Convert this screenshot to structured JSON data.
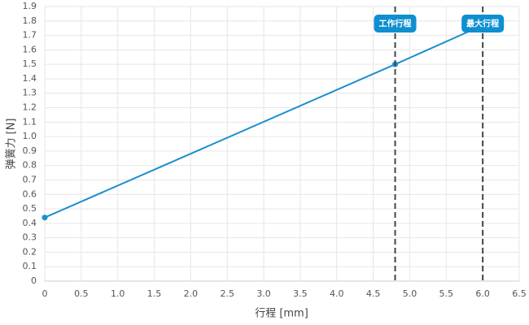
{
  "chart_data": {
    "type": "line",
    "x_label": "行程 [mm]",
    "y_label": "弹簧力 [N]",
    "x": [
      0,
      4.8,
      6
    ],
    "series": [
      {
        "name": "弹簧力",
        "color": "#1a8fcf",
        "values": [
          0.44,
          1.5,
          1.77
        ]
      }
    ],
    "xlim": [
      0,
      6.5
    ],
    "xticks": [
      0,
      0.5,
      {
        "value": 1,
        "label": "1.0"
      },
      1.5,
      {
        "value": 2,
        "label": "2.0"
      },
      2.5,
      {
        "value": 3,
        "label": "3.0"
      },
      3.5,
      {
        "value": 4,
        "label": "4.0"
      },
      4.5,
      {
        "value": 5,
        "label": "5.0"
      },
      5.5,
      {
        "value": 6,
        "label": "6.0"
      },
      6.5
    ],
    "ylim": [
      0,
      1.9
    ],
    "yticks": [
      0,
      0.1,
      0.2,
      0.3,
      0.4,
      0.5,
      0.6,
      0.7,
      0.8,
      0.9,
      {
        "value": 1,
        "label": "1.0"
      },
      1.1,
      1.2,
      1.3,
      1.4,
      1.5,
      1.6,
      1.7,
      1.8,
      1.9
    ],
    "grid": true,
    "annotations": [
      {
        "x": 4.8,
        "label": "工作行程"
      },
      {
        "x": 6,
        "label": "最大行程"
      }
    ],
    "annotation_color": "#0e8fd0"
  }
}
